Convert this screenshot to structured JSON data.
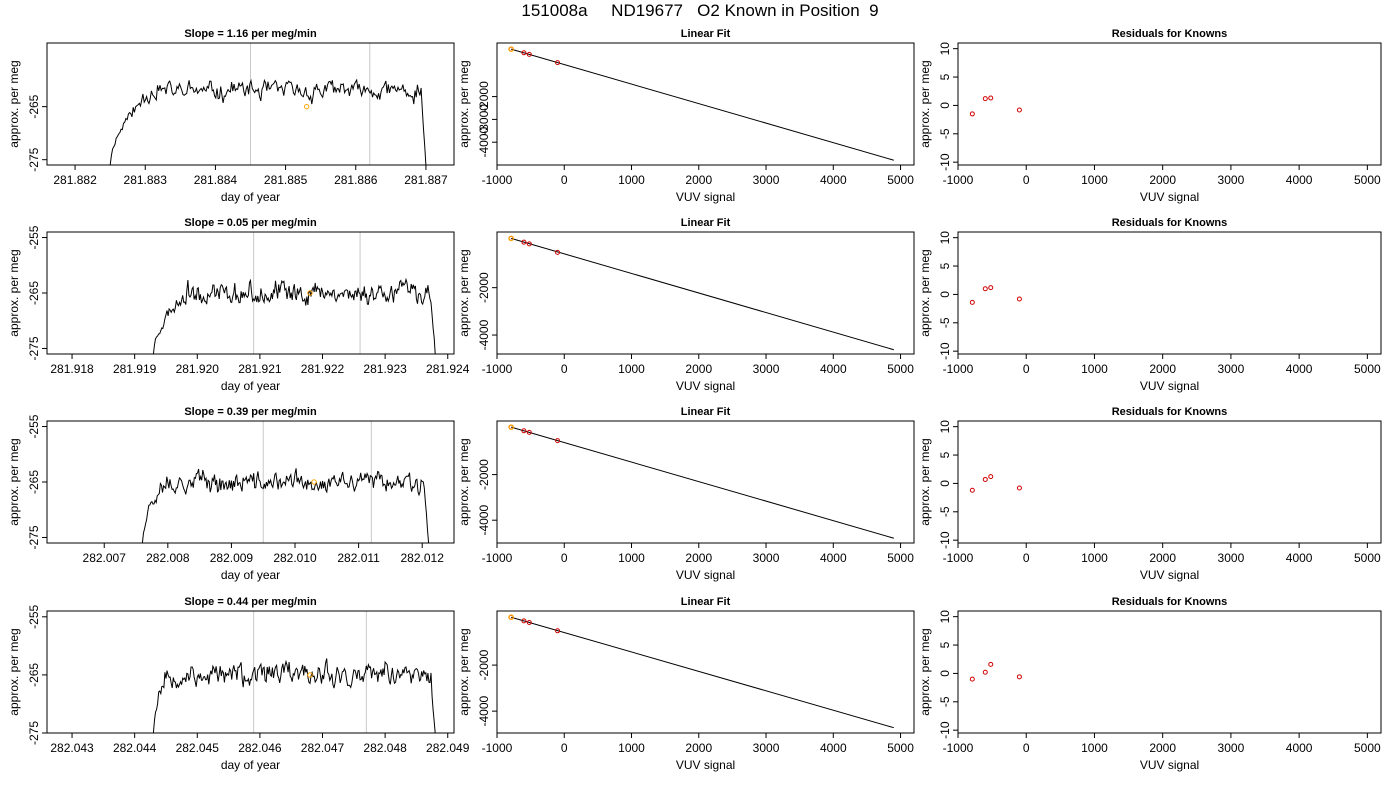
{
  "title": "151008a     ND19677   O2 Known in Position  9",
  "colors": {
    "trace": "#000000",
    "vline": "#c8c8c8",
    "orange": "#ffa500",
    "red": "#d00000"
  },
  "chart_data": [
    {
      "type": "line",
      "title": "Slope =  1.16  per meg/min",
      "xlabel": "day of year",
      "ylabel": "approx. per meg",
      "xlim": [
        281.8816,
        281.8874
      ],
      "ylim": [
        -276,
        -253
      ],
      "xticks": [
        "281.882",
        "281.883",
        "281.884",
        "281.885",
        "281.886",
        "281.887"
      ],
      "xtick_values": [
        281.882,
        281.883,
        281.884,
        281.885,
        281.886,
        281.887
      ],
      "yticks": [
        "-275",
        "-265"
      ],
      "ytick_values": [
        -275,
        -265
      ],
      "vlines": [
        281.8845,
        281.8862
      ],
      "x_start": 281.8825,
      "x_end": 281.887,
      "n": 260,
      "base": -262,
      "ramp_from": -276,
      "ramp_until": 281.8831,
      "marker": [
        281.8853,
        -265
      ],
      "seed": 11
    },
    {
      "type": "scatter",
      "title": "Linear Fit",
      "xlabel": "VUV signal",
      "ylabel": "approx. per meg",
      "xlim": [
        -1000,
        5200
      ],
      "ylim": [
        -5000,
        350
      ],
      "xticks": [
        "-1000",
        "0",
        "1000",
        "2000",
        "3000",
        "4000",
        "5000"
      ],
      "xtick_values": [
        -1000,
        0,
        1000,
        2000,
        3000,
        4000,
        5000
      ],
      "yticks": [
        "-2000",
        "-3000",
        "-4000"
      ],
      "ytick_values": [
        -2000,
        -3000,
        -4000
      ],
      "fit_line": [
        [
          -790,
          80
        ],
        [
          4900,
          -4790
        ]
      ],
      "points": [
        [
          -790,
          80
        ],
        [
          -600,
          -80
        ],
        [
          -520,
          -150
        ],
        [
          -100,
          -510
        ]
      ],
      "marker": [
        -790,
        80
      ]
    },
    {
      "type": "scatter",
      "title": "Residuals for Knowns",
      "xlabel": "VUV signal",
      "ylabel": "approx. per meg",
      "xlim": [
        -1000,
        5200
      ],
      "ylim": [
        -10.5,
        11
      ],
      "xticks": [
        "-1000",
        "0",
        "1000",
        "2000",
        "3000",
        "4000",
        "5000"
      ],
      "xtick_values": [
        -1000,
        0,
        1000,
        2000,
        3000,
        4000,
        5000
      ],
      "yticks": [
        "10",
        "5",
        "0",
        "-5",
        "-10"
      ],
      "ytick_values": [
        10,
        5,
        0,
        -5,
        -10
      ],
      "points": [
        [
          -790,
          -1.5
        ],
        [
          -600,
          1.2
        ],
        [
          -520,
          1.3
        ],
        [
          -100,
          -0.8
        ]
      ]
    },
    {
      "type": "line",
      "title": "Slope =  0.05  per meg/min",
      "xlabel": "day of year",
      "ylabel": "approx. per meg",
      "xlim": [
        281.9176,
        281.9241
      ],
      "ylim": [
        -276,
        -254
      ],
      "xticks": [
        "281.918",
        "281.919",
        "281.920",
        "281.921",
        "281.922",
        "281.923",
        "281.924"
      ],
      "xtick_values": [
        281.918,
        281.919,
        281.92,
        281.921,
        281.922,
        281.923,
        281.924
      ],
      "yticks": [
        "-275",
        "-265",
        "-255"
      ],
      "ytick_values": [
        -275,
        -265,
        -255
      ],
      "vlines": [
        281.9209,
        281.9226
      ],
      "x_start": 281.9193,
      "x_end": 281.9238,
      "n": 270,
      "base": -265,
      "ramp_from": -276,
      "ramp_until": 281.9198,
      "marker": [
        281.9218,
        -265
      ],
      "seed": 23
    },
    {
      "type": "scatter",
      "title": "Linear Fit",
      "xlabel": "VUV signal",
      "ylabel": "approx. per meg",
      "xlim": [
        -1000,
        5200
      ],
      "ylim": [
        -4800,
        350
      ],
      "xticks": [
        "-1000",
        "0",
        "1000",
        "2000",
        "3000",
        "4000",
        "5000"
      ],
      "xtick_values": [
        -1000,
        0,
        1000,
        2000,
        3000,
        4000,
        5000
      ],
      "yticks": [
        "-2000",
        "-4000"
      ],
      "ytick_values": [
        -2000,
        -4000
      ],
      "fit_line": [
        [
          -790,
          80
        ],
        [
          4900,
          -4620
        ]
      ],
      "points": [
        [
          -790,
          80
        ],
        [
          -600,
          -80
        ],
        [
          -520,
          -150
        ],
        [
          -100,
          -510
        ]
      ],
      "marker": [
        -790,
        80
      ]
    },
    {
      "type": "scatter",
      "title": "Residuals for Knowns",
      "xlabel": "VUV signal",
      "ylabel": "approx. per meg",
      "xlim": [
        -1000,
        5200
      ],
      "ylim": [
        -10.5,
        11
      ],
      "xticks": [
        "-1000",
        "0",
        "1000",
        "2000",
        "3000",
        "4000",
        "5000"
      ],
      "xtick_values": [
        -1000,
        0,
        1000,
        2000,
        3000,
        4000,
        5000
      ],
      "yticks": [
        "10",
        "5",
        "0",
        "-5",
        "-10"
      ],
      "ytick_values": [
        10,
        5,
        0,
        -5,
        -10
      ],
      "points": [
        [
          -790,
          -1.4
        ],
        [
          -600,
          1.0
        ],
        [
          -520,
          1.2
        ],
        [
          -100,
          -0.8
        ]
      ]
    },
    {
      "type": "line",
      "title": "Slope =  0.39  per meg/min",
      "xlabel": "day of year",
      "ylabel": "approx. per meg",
      "xlim": [
        282.0061,
        282.0125
      ],
      "ylim": [
        -276,
        -254
      ],
      "xticks": [
        "282.007",
        "282.008",
        "282.009",
        "282.010",
        "282.011",
        "282.012"
      ],
      "xtick_values": [
        282.007,
        282.008,
        282.009,
        282.01,
        282.011,
        282.012
      ],
      "yticks": [
        "-275",
        "-265",
        "-255"
      ],
      "ytick_values": [
        -275,
        -265,
        -255
      ],
      "vlines": [
        282.0095,
        282.0112
      ],
      "x_start": 282.0076,
      "x_end": 282.0121,
      "n": 270,
      "base": -265,
      "ramp_from": -276,
      "ramp_until": 282.0079,
      "marker": [
        282.0103,
        -265
      ],
      "seed": 37
    },
    {
      "type": "scatter",
      "title": "Linear Fit",
      "xlabel": "VUV signal",
      "ylabel": "approx. per meg",
      "xlim": [
        -1000,
        5200
      ],
      "ylim": [
        -5000,
        350
      ],
      "xticks": [
        "-1000",
        "0",
        "1000",
        "2000",
        "3000",
        "4000",
        "5000"
      ],
      "xtick_values": [
        -1000,
        0,
        1000,
        2000,
        3000,
        4000,
        5000
      ],
      "yticks": [
        "-2000",
        "-4000"
      ],
      "ytick_values": [
        -2000,
        -4000
      ],
      "fit_line": [
        [
          -790,
          80
        ],
        [
          4900,
          -4790
        ]
      ],
      "points": [
        [
          -790,
          80
        ],
        [
          -600,
          -80
        ],
        [
          -520,
          -150
        ],
        [
          -100,
          -510
        ]
      ],
      "marker": [
        -790,
        80
      ]
    },
    {
      "type": "scatter",
      "title": "Residuals for Knowns",
      "xlabel": "VUV signal",
      "ylabel": "approx. per meg",
      "xlim": [
        -1000,
        5200
      ],
      "ylim": [
        -10.5,
        11
      ],
      "xticks": [
        "-1000",
        "0",
        "1000",
        "2000",
        "3000",
        "4000",
        "5000"
      ],
      "xtick_values": [
        -1000,
        0,
        1000,
        2000,
        3000,
        4000,
        5000
      ],
      "yticks": [
        "10",
        "5",
        "0",
        "-5",
        "-10"
      ],
      "ytick_values": [
        10,
        5,
        0,
        -5,
        -10
      ],
      "points": [
        [
          -790,
          -1.2
        ],
        [
          -600,
          0.7
        ],
        [
          -520,
          1.2
        ],
        [
          -100,
          -0.8
        ]
      ]
    },
    {
      "type": "line",
      "title": "Slope =  0.44  per meg/min",
      "xlabel": "day of year",
      "ylabel": "approx. per meg",
      "xlim": [
        282.0426,
        282.0491
      ],
      "ylim": [
        -275,
        -254
      ],
      "xticks": [
        "282.043",
        "282.044",
        "282.045",
        "282.046",
        "282.047",
        "282.048",
        "282.049"
      ],
      "xtick_values": [
        282.043,
        282.044,
        282.045,
        282.046,
        282.047,
        282.048,
        282.049
      ],
      "yticks": [
        "-275",
        "-265",
        "-255"
      ],
      "ytick_values": [
        -275,
        -265,
        -255
      ],
      "vlines": [
        282.0459,
        282.0477
      ],
      "x_start": 282.0443,
      "x_end": 282.0488,
      "n": 270,
      "base": -265,
      "ramp_from": -275,
      "ramp_until": 282.0445,
      "marker": [
        282.0468,
        -265
      ],
      "seed": 53
    },
    {
      "type": "scatter",
      "title": "Linear Fit",
      "xlabel": "VUV signal",
      "ylabel": "approx. per meg",
      "xlim": [
        -1000,
        5200
      ],
      "ylim": [
        -4950,
        350
      ],
      "xticks": [
        "-1000",
        "0",
        "1000",
        "2000",
        "3000",
        "4000",
        "5000"
      ],
      "xtick_values": [
        -1000,
        0,
        1000,
        2000,
        3000,
        4000,
        5000
      ],
      "yticks": [
        "-2000",
        "-4000"
      ],
      "ytick_values": [
        -2000,
        -4000
      ],
      "fit_line": [
        [
          -790,
          80
        ],
        [
          4900,
          -4720
        ]
      ],
      "points": [
        [
          -790,
          80
        ],
        [
          -600,
          -80
        ],
        [
          -520,
          -150
        ],
        [
          -100,
          -510
        ]
      ],
      "marker": [
        -790,
        80
      ]
    },
    {
      "type": "scatter",
      "title": "Residuals for Knowns",
      "xlabel": "VUV signal",
      "ylabel": "approx. per meg",
      "xlim": [
        -1000,
        5200
      ],
      "ylim": [
        -10.5,
        11
      ],
      "xticks": [
        "-1000",
        "0",
        "1000",
        "2000",
        "3000",
        "4000",
        "5000"
      ],
      "xtick_values": [
        -1000,
        0,
        1000,
        2000,
        3000,
        4000,
        5000
      ],
      "yticks": [
        "10",
        "5",
        "0",
        "-5",
        "-10"
      ],
      "ytick_values": [
        10,
        5,
        0,
        -5,
        -10
      ],
      "points": [
        [
          -790,
          -1.0
        ],
        [
          -600,
          0.2
        ],
        [
          -520,
          1.6
        ],
        [
          -100,
          -0.6
        ]
      ]
    }
  ]
}
